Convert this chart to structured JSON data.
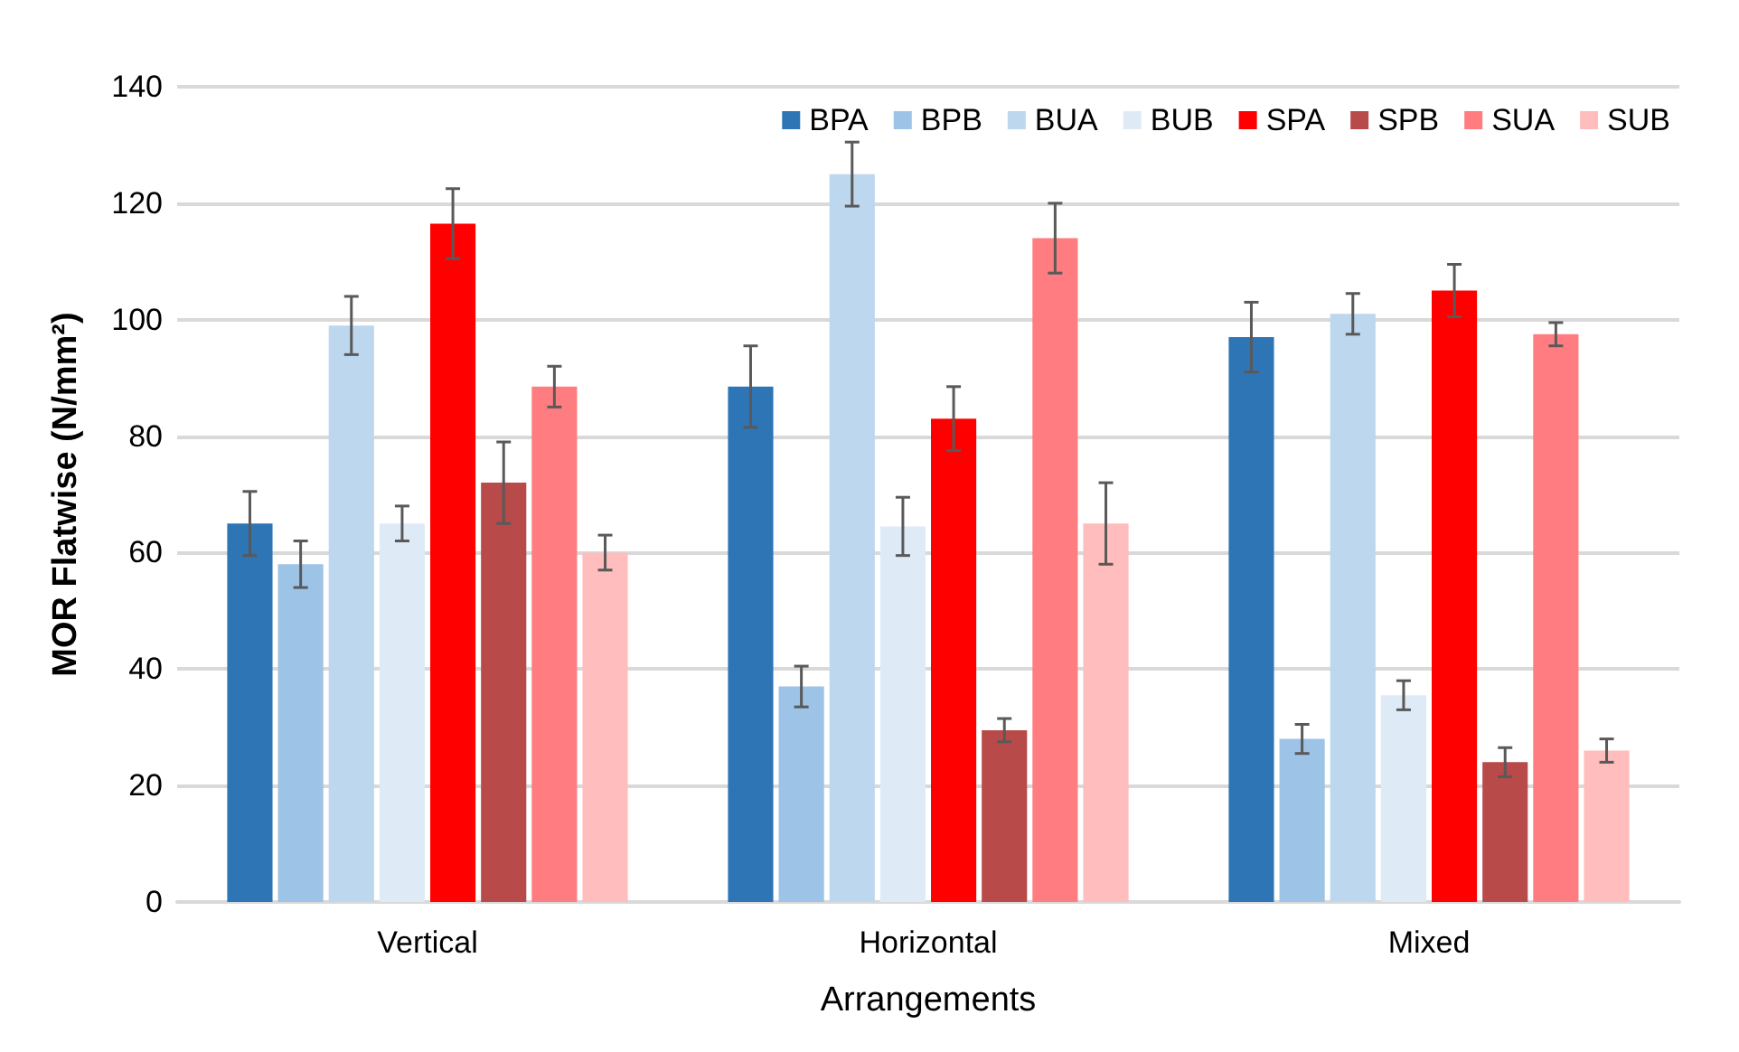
{
  "chart_data": {
    "type": "bar",
    "xlabel": "Arrangements",
    "ylabel": "MOR Flatwise (N/mm²)",
    "categories": [
      "Vertical",
      "Horizontal",
      "Mixed"
    ],
    "ylim": [
      0,
      140
    ],
    "yticks": [
      0,
      20,
      40,
      60,
      80,
      100,
      120,
      140
    ],
    "grid": "y",
    "legend": "top right",
    "series": [
      {
        "name": "BPA",
        "color": "#2e75b6",
        "values": [
          65,
          88.5,
          97
        ],
        "errors": [
          5.5,
          7,
          6
        ]
      },
      {
        "name": "BPB",
        "color": "#9dc3e6",
        "values": [
          58,
          37,
          28
        ],
        "errors": [
          4,
          3.5,
          2.5
        ]
      },
      {
        "name": "BUA",
        "color": "#bdd7ee",
        "values": [
          99,
          125,
          101
        ],
        "errors": [
          5,
          5.5,
          3.5
        ]
      },
      {
        "name": "BUB",
        "color": "#deebf7",
        "values": [
          65,
          64.5,
          35.5
        ],
        "errors": [
          3,
          5,
          2.5
        ]
      },
      {
        "name": "SPA",
        "color": "#ff0000",
        "values": [
          116.5,
          83,
          105
        ],
        "errors": [
          6,
          5.5,
          4.5
        ]
      },
      {
        "name": "SPB",
        "color": "#b94a4a",
        "values": [
          72,
          29.5,
          24
        ],
        "errors": [
          7,
          2,
          2.5
        ]
      },
      {
        "name": "SUA",
        "color": "#ff7c80",
        "values": [
          88.5,
          114,
          97.5
        ],
        "errors": [
          3.5,
          6,
          2
        ]
      },
      {
        "name": "SUB",
        "color": "#ffbdbd",
        "values": [
          60,
          65,
          26
        ],
        "errors": [
          3,
          7,
          2
        ]
      }
    ]
  }
}
